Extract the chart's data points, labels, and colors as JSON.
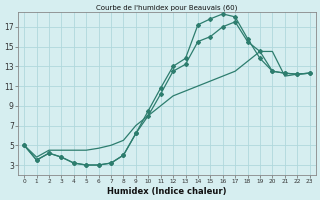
{
  "title": "Courbe de l'humidex pour Beauvais (60)",
  "xlabel": "Humidex (Indice chaleur)",
  "bg_color": "#d6eef0",
  "line_color": "#2d7d6e",
  "grid_color": "#b0d8dc",
  "xlim": [
    -0.5,
    23.5
  ],
  "ylim": [
    2.0,
    18.5
  ],
  "xticks": [
    0,
    1,
    2,
    3,
    4,
    5,
    6,
    7,
    8,
    9,
    10,
    11,
    12,
    13,
    14,
    15,
    16,
    17,
    18,
    19,
    20,
    21,
    22,
    23
  ],
  "yticks": [
    3,
    5,
    7,
    9,
    11,
    13,
    15,
    17
  ],
  "line1_x": [
    0,
    1,
    2,
    3,
    4,
    5,
    6,
    7,
    8,
    9,
    10,
    11,
    12,
    13,
    14,
    15,
    16,
    17,
    18,
    19,
    20,
    21,
    22,
    23
  ],
  "line1_y": [
    5,
    3.5,
    4.2,
    3.8,
    3.2,
    3.0,
    3.0,
    3.2,
    4.0,
    6.2,
    8.5,
    10.8,
    13.0,
    13.8,
    17.2,
    17.8,
    18.3,
    18.0,
    15.8,
    13.8,
    12.5,
    12.3,
    12.2,
    12.3
  ],
  "line2_x": [
    0,
    1,
    2,
    3,
    4,
    5,
    6,
    7,
    8,
    9,
    10,
    11,
    12,
    13,
    14,
    15,
    16,
    17,
    18,
    19,
    20,
    21,
    22,
    23
  ],
  "line2_y": [
    5,
    3.5,
    4.2,
    3.8,
    3.2,
    3.0,
    3.0,
    3.2,
    4.0,
    6.2,
    8.0,
    10.2,
    12.5,
    13.2,
    15.5,
    16.0,
    17.0,
    17.5,
    15.5,
    14.5,
    12.5,
    12.3,
    12.2,
    12.3
  ],
  "line3_x": [
    0,
    1,
    2,
    3,
    4,
    5,
    6,
    7,
    8,
    9,
    10,
    11,
    12,
    13,
    14,
    15,
    16,
    17,
    18,
    19,
    20,
    21,
    22,
    23
  ],
  "line3_y": [
    5,
    3.8,
    4.5,
    4.5,
    4.5,
    4.5,
    4.7,
    5.0,
    5.5,
    7.0,
    8.0,
    9.0,
    10.0,
    10.5,
    11.0,
    11.5,
    12.0,
    12.5,
    13.5,
    14.5,
    14.5,
    12.0,
    12.2,
    12.3
  ]
}
